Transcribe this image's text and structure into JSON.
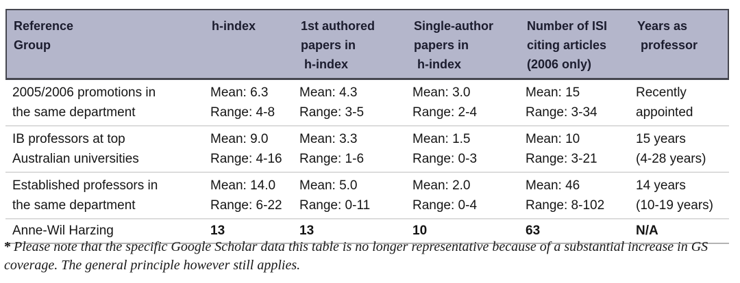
{
  "table": {
    "header": {
      "reference_group": "Reference\nGroup",
      "h_index": "h-index",
      "first_authored": "1st authored\npapers in\n h-index",
      "single_author": "Single-author\npapers in\n h-index",
      "isi_citing": "Number of ISI\nciting articles\n(2006 only)",
      "years": "Years as\n professor"
    },
    "rows": [
      {
        "group": "2005/2006 promotions in\nthe same department",
        "h_index": "Mean: 6.3\nRange: 4-8",
        "first_authored": "Mean: 4.3\nRange: 3-5",
        "single_author": "Mean: 3.0\nRange: 2-4",
        "isi_citing": "Mean: 15\nRange: 3-34",
        "years": "Recently\nappointed"
      },
      {
        "group": "IB professors at top\nAustralian universities",
        "h_index": "Mean: 9.0\nRange: 4-16",
        "first_authored": "Mean: 3.3\nRange: 1-6",
        "single_author": "Mean: 1.5\nRange: 0-3",
        "isi_citing": "Mean: 10\nRange: 3-21",
        "years": "15 years\n(4-28 years)"
      },
      {
        "group": "Established professors in\nthe same department",
        "h_index": "Mean: 14.0\nRange: 6-22",
        "first_authored": "Mean: 5.0\nRange: 0-11",
        "single_author": "Mean: 2.0\nRange: 0-4",
        "isi_citing": "Mean: 46\nRange: 8-102",
        "years": "14 years\n(10-19 years)"
      }
    ],
    "summary": {
      "group": "Anne-Wil Harzing",
      "h_index": "13",
      "first_authored": "13",
      "single_author": "10",
      "isi_citing": "63",
      "years": "N/A"
    }
  },
  "footnote": {
    "marker": "*",
    "text": "Please note that the specific Google Scholar data this table is no longer representative because of a substantial increase in GS coverage. The general principle however still applies."
  },
  "colors": {
    "header_background": "#b4b6cb",
    "header_text": "#1b1c2e",
    "dark_border": "#45464f",
    "light_separator": "#dcdcdc",
    "end_rule": "#b3b3b3"
  }
}
